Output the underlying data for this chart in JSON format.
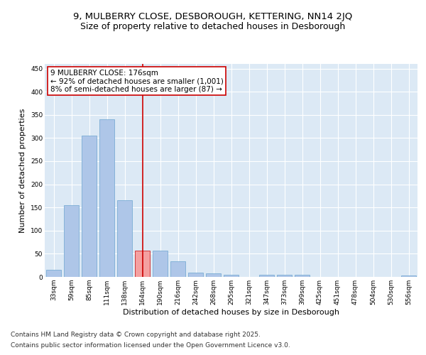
{
  "title_line1": "9, MULBERRY CLOSE, DESBOROUGH, KETTERING, NN14 2JQ",
  "title_line2": "Size of property relative to detached houses in Desborough",
  "xlabel": "Distribution of detached houses by size in Desborough",
  "ylabel": "Number of detached properties",
  "categories": [
    "33sqm",
    "59sqm",
    "85sqm",
    "111sqm",
    "138sqm",
    "164sqm",
    "190sqm",
    "216sqm",
    "242sqm",
    "268sqm",
    "295sqm",
    "321sqm",
    "347sqm",
    "373sqm",
    "399sqm",
    "425sqm",
    "451sqm",
    "478sqm",
    "504sqm",
    "530sqm",
    "556sqm"
  ],
  "bar_heights": [
    15,
    155,
    305,
    340,
    165,
    57,
    57,
    33,
    9,
    8,
    5,
    0,
    5,
    4,
    4,
    0,
    0,
    0,
    0,
    0,
    3
  ],
  "bar_color": "#aec6e8",
  "bar_edge_color": "#7aadd4",
  "highlight_bar_index": 5,
  "highlight_bar_color": "#f4a0a0",
  "highlight_bar_edge_color": "#cc2222",
  "vline_x": 5,
  "vline_color": "#cc0000",
  "ylim": [
    0,
    460
  ],
  "yticks": [
    0,
    50,
    100,
    150,
    200,
    250,
    300,
    350,
    400,
    450
  ],
  "annotation_text": "9 MULBERRY CLOSE: 176sqm\n← 92% of detached houses are smaller (1,001)\n8% of semi-detached houses are larger (87) →",
  "annotation_box_facecolor": "#ffffff",
  "annotation_box_edgecolor": "#cc0000",
  "footer_line1": "Contains HM Land Registry data © Crown copyright and database right 2025.",
  "footer_line2": "Contains public sector information licensed under the Open Government Licence v3.0.",
  "plot_bg_color": "#dce9f5",
  "fig_bg_color": "#ffffff",
  "grid_color": "#ffffff",
  "title_fontsize": 9.5,
  "subtitle_fontsize": 9,
  "axis_label_fontsize": 8,
  "tick_fontsize": 6.5,
  "annotation_fontsize": 7.5,
  "footer_fontsize": 6.5
}
